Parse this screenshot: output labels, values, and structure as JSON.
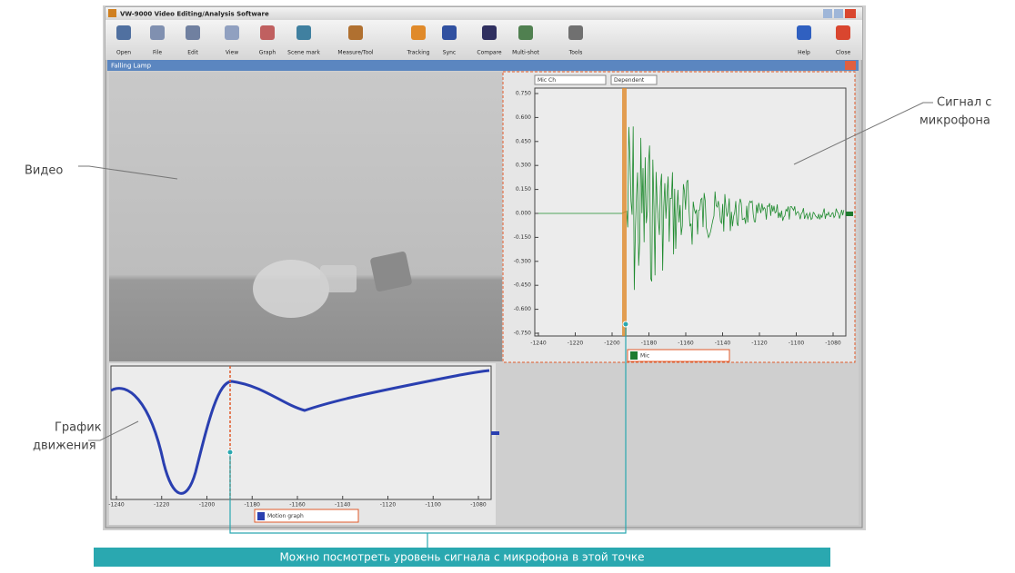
{
  "window": {
    "title": "VW-9000 Video Editing/Analysis Software"
  },
  "toolbar": {
    "items": [
      "Open",
      "File",
      "Edit",
      "View",
      "Graph",
      "Scene mark",
      "Measure/Tool",
      "Tracking",
      "Sync",
      "Compare",
      "Multi-shot",
      "Tools",
      "Help",
      "Close"
    ]
  },
  "subwindow": {
    "title": "Falling Lamp"
  },
  "mic_graph": {
    "dropdowns": [
      "Mic Ch",
      "Dependent"
    ],
    "yticks": [
      "0.750",
      "0.600",
      "0.450",
      "0.300",
      "0.150",
      "0.000",
      "-0.150",
      "-0.300",
      "-0.450",
      "-0.600",
      "-0.750"
    ],
    "xticks": [
      "-1240",
      "-1220",
      "-1200",
      "-1180",
      "-1160",
      "-1140",
      "-1120",
      "-1100",
      "-1080"
    ],
    "legend": "Mic"
  },
  "motion_graph": {
    "xticks": [
      "-1240",
      "-1220",
      "-1200",
      "-1180",
      "-1160",
      "-1140",
      "-1120",
      "-1100",
      "-1080"
    ],
    "legend": "Motion graph"
  },
  "annotations": {
    "video": "Видео",
    "mic": [
      "Сигнал с",
      "микрофона"
    ],
    "motion": [
      "График",
      "движения"
    ],
    "caption": "Можно посмотреть уровень сигнала с микрофона в этой точке"
  }
}
